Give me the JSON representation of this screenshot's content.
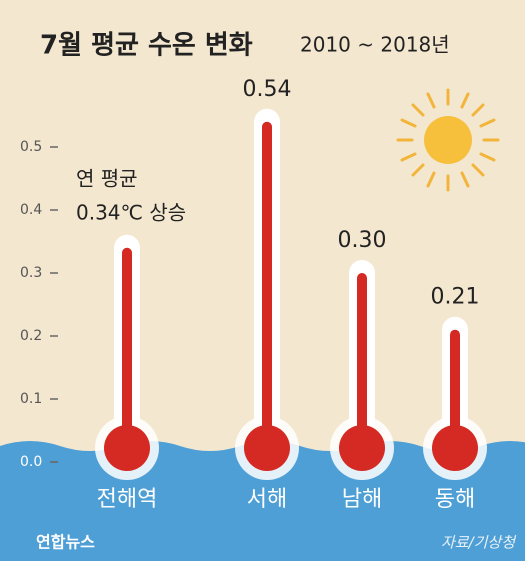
{
  "chart_data": {
    "type": "bar",
    "title": "7월 평균 수온 변화",
    "subtitle": "2010 ~ 2018년",
    "categories": [
      "전해역",
      "서해",
      "남해",
      "동해"
    ],
    "values": [
      0.34,
      0.54,
      0.3,
      0.21
    ],
    "value_labels": [
      null,
      "0.54",
      "0.30",
      "0.21"
    ],
    "color": "#d42a23",
    "ylim": [
      0,
      0.6
    ],
    "yticks": [
      {
        "value": 0,
        "label": "0.0"
      },
      0.1,
      0.2,
      0.3,
      0.4,
      0.5
    ],
    "annotations": [
      "연 평균",
      "0.34℃ 상승"
    ],
    "source": "자료/기상청",
    "logo": "연합뉴스"
  }
}
